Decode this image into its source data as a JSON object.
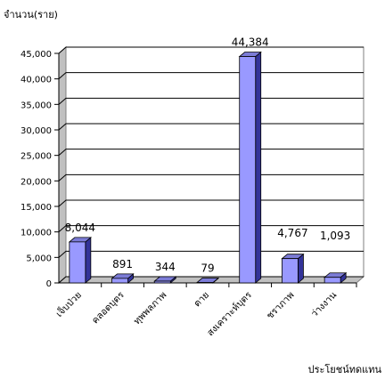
{
  "chart_data": {
    "type": "bar",
    "title": "",
    "ylabel": "จำนวน(ราย)",
    "xlabel": "ประโยชน์ทดแทน",
    "categories": [
      "เจ็บป่วย",
      "คลอดบุตร",
      "ทุพพลภาพ",
      "ตาย",
      "สงเคราะห์บุตร",
      "ชราภาพ",
      "ว่างงาน"
    ],
    "values": [
      8044,
      891,
      344,
      79,
      44384,
      4767,
      1093
    ],
    "value_labels": [
      "8,044",
      "891",
      "344",
      "79",
      "44,384",
      "4,767",
      "1,093"
    ],
    "yticks": [
      "0",
      "5,000",
      "10,000",
      "15,000",
      "20,000",
      "25,000",
      "30,000",
      "35,000",
      "40,000",
      "45,000"
    ],
    "ylim": [
      0,
      45000
    ],
    "grid": true,
    "colors": {
      "bar_front": "#9999ff",
      "bar_side": "#333399",
      "bar_top": "#7b7bd6",
      "wall": "#c0c0c0",
      "grid": "#000000"
    }
  }
}
